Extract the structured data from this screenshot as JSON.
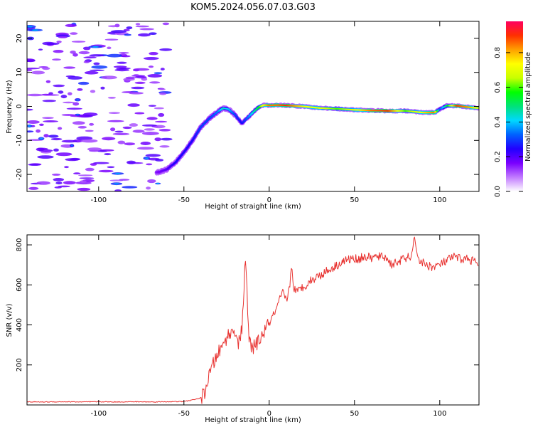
{
  "title": "KOM5.2024.056.07.03.G03",
  "chart_data": [
    {
      "type": "heatmap",
      "xlabel": "Height of straight line (km)",
      "ylabel": "Frequency (Hz)",
      "xlim": [
        -142,
        123
      ],
      "ylim": [
        -25,
        25
      ],
      "xticks": [
        -100,
        -50,
        0,
        50,
        100
      ],
      "yticks": [
        -20,
        -10,
        0,
        10,
        20
      ],
      "colorbar": {
        "label": "Normalized spectral amplitude",
        "range": [
          0,
          0.98
        ],
        "ticks": [
          0.0,
          0.2,
          0.4,
          0.6,
          0.8
        ],
        "tick_labels": [
          "0.0",
          "0.2",
          "0.4",
          "0.6",
          "0.8"
        ],
        "colors": [
          "#ffffff",
          "#c27bff",
          "#7a00ff",
          "#2200ff",
          "#0060ff",
          "#00d8ff",
          "#00e27a",
          "#00ff00",
          "#c8ff00",
          "#ffff00",
          "#ffa000",
          "#ff3000",
          "#ff0060"
        ]
      },
      "ridge": {
        "x": [
          -66,
          -60,
          -55,
          -50,
          -45,
          -40,
          -35,
          -30,
          -27,
          -24,
          -20,
          -16,
          -12,
          -9,
          -6,
          -3,
          0,
          5,
          10,
          20,
          30,
          40,
          50,
          60,
          70,
          80,
          90,
          97,
          100,
          104,
          110,
          118,
          123
        ],
        "y": [
          -19.5,
          -18.5,
          -16.5,
          -13.5,
          -10,
          -6,
          -3.5,
          -1.5,
          -0.5,
          -0.8,
          -2.5,
          -5,
          -3,
          -1.5,
          -0.2,
          0.4,
          0.3,
          0.4,
          0.3,
          0,
          -0.5,
          -0.7,
          -1,
          -1.2,
          -1.3,
          -1.3,
          -1.8,
          -1.8,
          -0.8,
          0.2,
          0.2,
          -0.3,
          -0.5
        ],
        "amplitude": [
          0.15,
          0.2,
          0.25,
          0.25,
          0.25,
          0.3,
          0.3,
          0.35,
          0.45,
          0.4,
          0.3,
          0.25,
          0.35,
          0.45,
          0.55,
          0.75,
          0.85,
          0.85,
          0.9,
          0.75,
          0.7,
          0.6,
          0.7,
          0.85,
          0.9,
          0.6,
          0.75,
          0.85,
          0.3,
          0.5,
          0.9,
          0.8,
          0.7
        ]
      },
      "noise_region": {
        "x": [
          -142,
          -60
        ],
        "y": [
          -25,
          25
        ],
        "amplitude": [
          0.05,
          0.45
        ]
      }
    },
    {
      "type": "line",
      "xlabel": "Height of straight line (km)",
      "ylabel": "SNR (v/v)",
      "xlim": [
        -142,
        123
      ],
      "ylim": [
        0,
        850
      ],
      "xticks": [
        -100,
        -50,
        0,
        50,
        100
      ],
      "yticks": [
        200,
        400,
        600,
        800
      ],
      "color": "#e8312f",
      "series": [
        {
          "x": [
            -142,
            -130,
            -120,
            -110,
            -100,
            -90,
            -80,
            -70,
            -60,
            -50,
            -45,
            -40,
            -38,
            -36,
            -34,
            -32,
            -30,
            -28,
            -26,
            -24,
            -22,
            -20,
            -18,
            -16,
            -14,
            -13,
            -12,
            -10,
            -8,
            -6,
            -4,
            -2,
            0,
            2,
            4,
            6,
            8,
            10,
            12,
            13,
            14,
            16,
            18,
            20,
            24,
            28,
            32,
            36,
            40,
            44,
            48,
            52,
            56,
            60,
            64,
            68,
            72,
            76,
            80,
            84,
            85,
            88,
            92,
            96,
            100,
            104,
            108,
            112,
            116,
            120,
            123
          ],
          "y": [
            15,
            15,
            16,
            15,
            16,
            15,
            16,
            15,
            16,
            17,
            25,
            35,
            60,
            120,
            180,
            220,
            260,
            280,
            320,
            350,
            360,
            380,
            300,
            380,
            720,
            560,
            330,
            280,
            300,
            320,
            350,
            380,
            410,
            440,
            470,
            520,
            560,
            520,
            590,
            700,
            600,
            560,
            580,
            590,
            620,
            640,
            660,
            680,
            700,
            720,
            730,
            730,
            740,
            735,
            740,
            740,
            700,
            720,
            730,
            750,
            830,
            720,
            700,
            690,
            700,
            720,
            740,
            730,
            730,
            720,
            700
          ]
        }
      ]
    }
  ]
}
